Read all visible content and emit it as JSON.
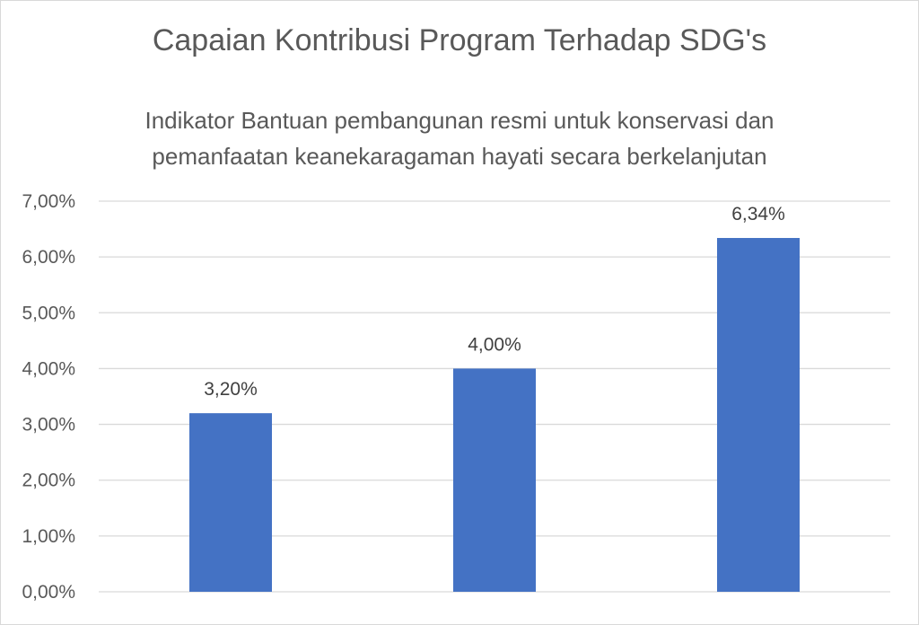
{
  "chart_data": {
    "type": "bar",
    "title": "Capaian Kontribusi Program Terhadap SDG's",
    "subtitle_lines": [
      "Indikator Bantuan pembangunan resmi untuk konservasi dan",
      "pemanfaatan keanekaragaman hayati secara berkelanjutan"
    ],
    "categories": [
      "",
      "",
      ""
    ],
    "values": [
      3.2,
      4.0,
      6.34
    ],
    "value_labels": [
      "3,20%",
      "4,00%",
      "6,34%"
    ],
    "ylim": [
      0,
      7
    ],
    "y_ticks": [
      {
        "value": 0,
        "label": "0,00%"
      },
      {
        "value": 1,
        "label": "1,00%"
      },
      {
        "value": 2,
        "label": "2,00%"
      },
      {
        "value": 3,
        "label": "3,00%"
      },
      {
        "value": 4,
        "label": "4,00%"
      },
      {
        "value": 5,
        "label": "5,00%"
      },
      {
        "value": 6,
        "label": "6,00%"
      },
      {
        "value": 7,
        "label": "7,00%"
      }
    ],
    "grid": true,
    "legend": "none",
    "colors": {
      "bar": "#4472c4",
      "grid": "#d9d9d9",
      "text": "#595959"
    }
  }
}
